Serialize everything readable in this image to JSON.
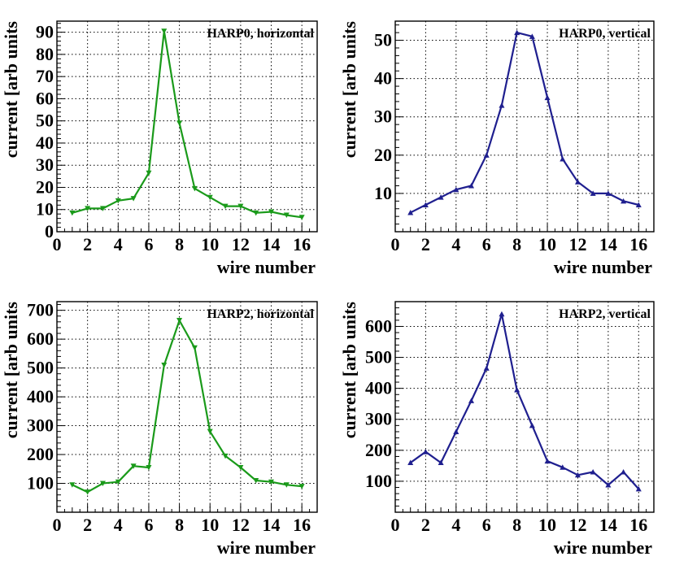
{
  "colors": {
    "horizontal": "#1a9a1a",
    "vertical": "#1f1f8f"
  },
  "chart_data": [
    {
      "type": "line",
      "title": "HARP0, horizontal",
      "xlabel": "wire number",
      "ylabel": "current [arb units",
      "xlim": [
        0,
        17
      ],
      "ylim": [
        0,
        95
      ],
      "xticks": [
        0,
        2,
        4,
        6,
        8,
        10,
        12,
        14,
        16
      ],
      "yticks": [
        0,
        10,
        20,
        30,
        40,
        50,
        60,
        70,
        80,
        90
      ],
      "marker": "triangle-down",
      "series": [
        {
          "name": "HARP0 horizontal",
          "color": "#1a9a1a",
          "x": [
            1,
            2,
            3,
            4,
            5,
            6,
            7,
            8,
            9,
            10,
            11,
            12,
            13,
            14,
            15,
            16
          ],
          "values": [
            8.5,
            10.5,
            10.5,
            14,
            15,
            26.5,
            90.5,
            49,
            19.5,
            15.5,
            11.5,
            11.5,
            8.5,
            9,
            7.5,
            6.5
          ]
        }
      ]
    },
    {
      "type": "line",
      "title": "HARP0, vertical",
      "xlabel": "wire number",
      "ylabel": "current [arb units",
      "xlim": [
        0,
        17
      ],
      "ylim": [
        0,
        55
      ],
      "xticks": [
        0,
        2,
        4,
        6,
        8,
        10,
        12,
        14,
        16
      ],
      "yticks": [
        10,
        20,
        30,
        40,
        50
      ],
      "marker": "triangle-up",
      "series": [
        {
          "name": "HARP0 vertical",
          "color": "#1f1f8f",
          "x": [
            1,
            2,
            3,
            4,
            5,
            6,
            7,
            8,
            9,
            10,
            11,
            12,
            13,
            14,
            15,
            16
          ],
          "values": [
            5,
            7,
            9,
            11,
            12,
            20,
            33,
            52,
            51,
            35,
            19,
            13,
            10,
            10,
            8,
            7
          ]
        }
      ]
    },
    {
      "type": "line",
      "title": "HARP2, horizontal",
      "xlabel": "wire number",
      "ylabel": "current [arb units",
      "xlim": [
        0,
        17
      ],
      "ylim": [
        0,
        730
      ],
      "xticks": [
        0,
        2,
        4,
        6,
        8,
        10,
        12,
        14,
        16
      ],
      "yticks": [
        100,
        200,
        300,
        400,
        500,
        600,
        700
      ],
      "marker": "triangle-down",
      "series": [
        {
          "name": "HARP2 horizontal",
          "color": "#1a9a1a",
          "x": [
            1,
            2,
            3,
            4,
            5,
            6,
            7,
            8,
            9,
            10,
            11,
            12,
            13,
            14,
            15,
            16
          ],
          "values": [
            95,
            70,
            100,
            105,
            160,
            155,
            510,
            665,
            570,
            280,
            195,
            155,
            110,
            105,
            95,
            90
          ]
        }
      ]
    },
    {
      "type": "line",
      "title": "HARP2, vertical",
      "xlabel": "wire number",
      "ylabel": "current [arb units",
      "xlim": [
        0,
        17
      ],
      "ylim": [
        0,
        680
      ],
      "xticks": [
        0,
        2,
        4,
        6,
        8,
        10,
        12,
        14,
        16
      ],
      "yticks": [
        100,
        200,
        300,
        400,
        500,
        600
      ],
      "marker": "triangle-up",
      "series": [
        {
          "name": "HARP2 vertical",
          "color": "#1f1f8f",
          "x": [
            1,
            2,
            3,
            4,
            5,
            6,
            7,
            8,
            9,
            10,
            11,
            12,
            13,
            14,
            15,
            16
          ],
          "values": [
            160,
            195,
            160,
            260,
            360,
            465,
            640,
            395,
            280,
            165,
            145,
            120,
            130,
            88,
            130,
            75
          ]
        }
      ]
    }
  ]
}
